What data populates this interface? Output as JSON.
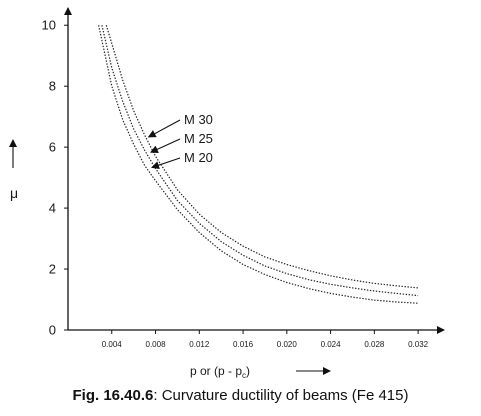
{
  "caption": {
    "prefix": "Fig. 16.40.6",
    "text": ": Curvature ductility of beams (Fe 415)"
  },
  "chart_data": {
    "type": "line",
    "title": "",
    "xlabel": "p or (p - p",
    "xlabel_sub": "c",
    "xlabel_tail": ")",
    "ylabel": "μ",
    "xlim": [
      0,
      0.034
    ],
    "ylim": [
      0,
      10.5
    ],
    "x_ticks": [
      0.004,
      0.008,
      0.012,
      0.016,
      0.02,
      0.024,
      0.028,
      0.032
    ],
    "x_tick_labels": [
      "0.004",
      "0.008",
      "0.012",
      "0.016",
      "0.020",
      "0.024",
      "0.028",
      "0.032"
    ],
    "y_ticks": [
      0,
      2,
      4,
      6,
      8,
      10
    ],
    "y_tick_labels": [
      "0",
      "2",
      "4",
      "6",
      "8",
      "10"
    ],
    "grid": false,
    "legend": "none",
    "series": [
      {
        "name": "M 30",
        "x": [
          0.0035,
          0.004,
          0.005,
          0.006,
          0.007,
          0.008,
          0.01,
          0.012,
          0.014,
          0.016,
          0.018,
          0.02,
          0.022,
          0.024,
          0.026,
          0.028,
          0.03,
          0.032
        ],
        "y": [
          10.0,
          9.4,
          8.2,
          7.2,
          6.4,
          5.7,
          4.6,
          3.8,
          3.2,
          2.75,
          2.4,
          2.15,
          1.95,
          1.78,
          1.64,
          1.53,
          1.45,
          1.38
        ]
      },
      {
        "name": "M 25",
        "x": [
          0.0031,
          0.004,
          0.005,
          0.006,
          0.007,
          0.008,
          0.01,
          0.012,
          0.014,
          0.016,
          0.018,
          0.02,
          0.022,
          0.024,
          0.026,
          0.028,
          0.03,
          0.032
        ],
        "y": [
          10.0,
          8.6,
          7.5,
          6.6,
          5.9,
          5.3,
          4.25,
          3.5,
          2.9,
          2.45,
          2.1,
          1.85,
          1.65,
          1.5,
          1.38,
          1.28,
          1.2,
          1.13
        ]
      },
      {
        "name": "M 20",
        "x": [
          0.0028,
          0.004,
          0.005,
          0.006,
          0.007,
          0.008,
          0.01,
          0.012,
          0.014,
          0.016,
          0.018,
          0.02,
          0.022,
          0.024,
          0.026,
          0.028,
          0.03,
          0.032
        ],
        "y": [
          10.0,
          8.0,
          6.9,
          6.1,
          5.4,
          4.9,
          3.95,
          3.2,
          2.6,
          2.15,
          1.82,
          1.56,
          1.36,
          1.2,
          1.08,
          0.98,
          0.92,
          0.88
        ]
      }
    ],
    "annotations": [
      {
        "text": "M 30",
        "target_series": 0,
        "at_x": 0.0071,
        "at_y": 6.4
      },
      {
        "text": "M 25",
        "target_series": 1,
        "at_x": 0.0073,
        "at_y": 5.9
      },
      {
        "text": "M 20",
        "target_series": 2,
        "at_x": 0.0074,
        "at_y": 5.4
      }
    ]
  }
}
